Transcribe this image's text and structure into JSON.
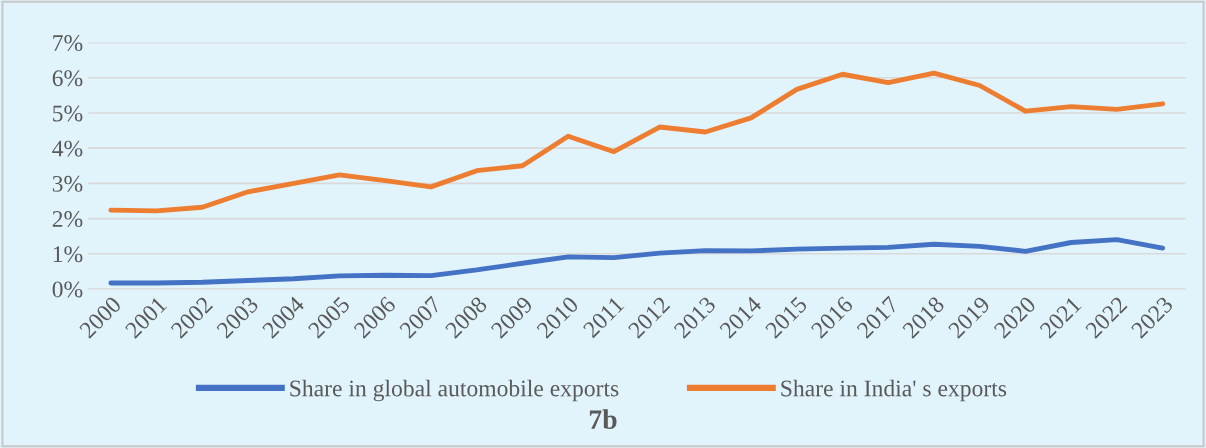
{
  "chart_data": {
    "type": "line",
    "title": "7b",
    "categories": [
      "2000",
      "2001",
      "2002",
      "2003",
      "2004",
      "2005",
      "2006",
      "2007",
      "2008",
      "2009",
      "2010",
      "2011",
      "2012",
      "2013",
      "2014",
      "2015",
      "2016",
      "2017",
      "2018",
      "2019",
      "2020",
      "2021",
      "2022",
      "2023"
    ],
    "series": [
      {
        "name": "Share in global automobile exports",
        "color": "#4472c4",
        "values": [
          0.17,
          0.17,
          0.19,
          0.24,
          0.29,
          0.37,
          0.39,
          0.38,
          0.54,
          0.73,
          0.91,
          0.89,
          1.02,
          1.09,
          1.08,
          1.13,
          1.16,
          1.18,
          1.27,
          1.21,
          1.07,
          1.32,
          1.4,
          1.16
        ]
      },
      {
        "name": "Share in India' s exports",
        "color": "#ed7d31",
        "values": [
          2.24,
          2.22,
          2.32,
          2.76,
          3.0,
          3.24,
          3.08,
          2.9,
          3.36,
          3.5,
          4.34,
          3.9,
          4.6,
          4.46,
          4.86,
          5.67,
          6.1,
          5.86,
          6.13,
          5.78,
          5.05,
          5.18,
          5.1,
          5.26
        ]
      }
    ],
    "ylim": [
      0,
      7
    ],
    "yticks": [
      {
        "value": 0,
        "label": "0%"
      },
      {
        "value": 1,
        "label": "1%"
      },
      {
        "value": 2,
        "label": "2%"
      },
      {
        "value": 3,
        "label": "3%"
      },
      {
        "value": 4,
        "label": "4%"
      },
      {
        "value": 5,
        "label": "5%"
      },
      {
        "value": 6,
        "label": "6%"
      },
      {
        "value": 7,
        "label": "7%"
      }
    ],
    "grid": "y",
    "legend": "bottom",
    "marker": "none",
    "line_style": "solid"
  }
}
